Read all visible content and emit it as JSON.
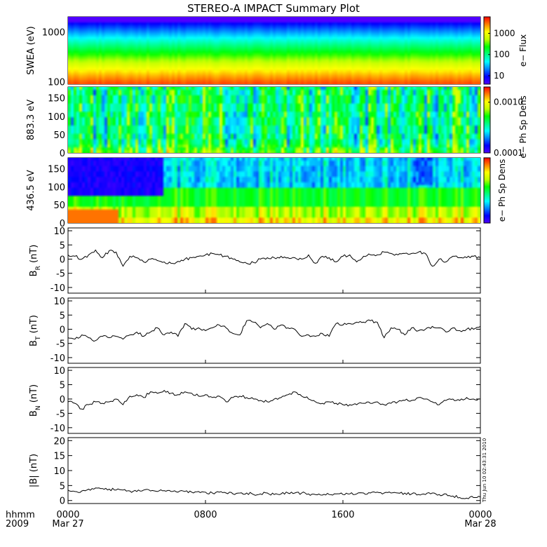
{
  "title": "STEREO-A IMPACT Summary Plot",
  "time_axis": {
    "left_labels": [
      "hhmm",
      "2009"
    ],
    "ticks": [
      {
        "hour": 0,
        "label": "0000",
        "date": "Mar 27"
      },
      {
        "hour": 8,
        "label": "0800",
        "date": ""
      },
      {
        "hour": 16,
        "label": "1600",
        "date": ""
      },
      {
        "hour": 24,
        "label": "0000",
        "date": "Mar 28"
      }
    ]
  },
  "stamp": "Thu Jun 10 02:43:31 2010",
  "colors": {
    "spectrogram_scale": [
      "#5000ff",
      "#0000ff",
      "#0080ff",
      "#00ffff",
      "#00ff80",
      "#00ff00",
      "#c0ff00",
      "#ffff00",
      "#ff8000",
      "#ff0000"
    ],
    "line": "#000000"
  },
  "chart_data": [
    {
      "type": "heatmap",
      "ylabel": "SWEA (eV)",
      "yscale": "log",
      "ylim": [
        90,
        2000
      ],
      "yticks": [
        {
          "v": 100,
          "label": "100"
        },
        {
          "v": 1000,
          "label": "1000"
        }
      ],
      "colorbar": {
        "label": "e− Flux",
        "scale": "log",
        "range": [
          4,
          6000
        ],
        "ticks": [
          {
            "v": 10,
            "label": "10"
          },
          {
            "v": 100,
            "label": "100"
          },
          {
            "v": 1000,
            "label": "1000"
          }
        ]
      },
      "xlim": [
        0,
        24
      ]
    },
    {
      "type": "heatmap",
      "ylabel": "883.3 eV",
      "ylim": [
        0,
        180
      ],
      "yticks": [
        {
          "v": 0,
          "label": "0"
        },
        {
          "v": 50,
          "label": "50"
        },
        {
          "v": 100,
          "label": "100"
        },
        {
          "v": 150,
          "label": "150"
        }
      ],
      "colorbar": {
        "label": "e− Ph Sp Dens",
        "scale": "log",
        "range": [
          0.0001,
          0.002
        ],
        "ticks": [
          {
            "v": 0.0001,
            "label": "0.0001"
          },
          {
            "v": 0.001,
            "label": "0.0010"
          }
        ]
      },
      "xlim": [
        0,
        24
      ]
    },
    {
      "type": "heatmap",
      "ylabel": "436.5 eV",
      "ylim": [
        0,
        180
      ],
      "yticks": [
        {
          "v": 0,
          "label": "0"
        },
        {
          "v": 50,
          "label": "50"
        },
        {
          "v": 100,
          "label": "100"
        },
        {
          "v": 150,
          "label": "150"
        }
      ],
      "colorbar": {
        "label": "e− Ph Sp Dens",
        "scale": "log",
        "ticks": []
      },
      "xlim": [
        0,
        24
      ]
    },
    {
      "type": "line",
      "ylabel": "B",
      "ylabel_sub": "R",
      "ylabel_unit": "(nT)",
      "ylim": [
        -12,
        11
      ],
      "yticks": [
        -10,
        -5,
        0,
        5,
        10
      ],
      "xlim": [
        0,
        24
      ],
      "x": [
        0,
        0.4,
        0.8,
        1.2,
        1.6,
        2.0,
        2.4,
        2.8,
        3.2,
        3.6,
        4.0,
        4.4,
        4.8,
        5.2,
        5.6,
        6.0,
        6.4,
        6.8,
        7.2,
        7.6,
        8.0,
        8.4,
        8.8,
        9.2,
        9.6,
        10.0,
        10.4,
        10.8,
        11.2,
        11.6,
        12.0,
        12.4,
        12.8,
        13.2,
        13.6,
        14.0,
        14.4,
        14.8,
        15.2,
        15.6,
        16.0,
        16.4,
        16.8,
        17.2,
        17.6,
        18.0,
        18.4,
        18.8,
        19.2,
        19.6,
        20.0,
        20.4,
        20.8,
        21.2,
        21.6,
        22.0,
        22.4,
        22.8,
        23.2,
        23.6,
        24.0
      ],
      "y": [
        1.5,
        1.0,
        0.0,
        1.5,
        3.2,
        0.5,
        3.0,
        2.5,
        -2.5,
        1.0,
        0.5,
        -1.0,
        0.0,
        -0.5,
        -1.0,
        -1.5,
        -0.8,
        0.0,
        0.5,
        1.0,
        1.5,
        2.0,
        1.5,
        1.0,
        0.0,
        -1.0,
        -1.5,
        -1.2,
        0.0,
        0.5,
        0.5,
        1.0,
        0.5,
        0.5,
        0.0,
        1.5,
        -1.5,
        1.0,
        0.5,
        -1.0,
        1.0,
        1.5,
        -1.0,
        1.0,
        1.5,
        1.5,
        2.5,
        2.0,
        1.5,
        2.0,
        2.0,
        2.5,
        2.0,
        -2.5,
        0.0,
        -1.0,
        1.0,
        0.5,
        0.5,
        1.0,
        0.5
      ]
    },
    {
      "type": "line",
      "ylabel": "B",
      "ylabel_sub": "T",
      "ylabel_unit": "(nT)",
      "ylim": [
        -12,
        11
      ],
      "yticks": [
        -10,
        -5,
        0,
        5,
        10
      ],
      "xlim": [
        0,
        24
      ],
      "x": [
        0,
        0.4,
        0.8,
        1.2,
        1.6,
        2.0,
        2.4,
        2.8,
        3.2,
        3.6,
        4.0,
        4.4,
        4.8,
        5.2,
        5.6,
        6.0,
        6.4,
        6.8,
        7.2,
        7.6,
        8.0,
        8.4,
        8.8,
        9.2,
        9.6,
        10.0,
        10.4,
        10.8,
        11.2,
        11.6,
        12.0,
        12.4,
        12.8,
        13.2,
        13.6,
        14.0,
        14.4,
        14.8,
        15.2,
        15.6,
        16.0,
        16.4,
        16.8,
        17.2,
        17.6,
        18.0,
        18.4,
        18.8,
        19.2,
        19.6,
        20.0,
        20.4,
        20.8,
        21.2,
        21.6,
        22.0,
        22.4,
        22.8,
        23.2,
        23.6,
        24.0
      ],
      "y": [
        -3.0,
        -3.5,
        -2.0,
        -3.0,
        -4.0,
        -2.5,
        -3.0,
        -2.5,
        -3.5,
        -2.0,
        -1.0,
        -2.5,
        -1.0,
        0.5,
        -2.0,
        -1.0,
        -2.5,
        2.0,
        0.0,
        0.5,
        -0.5,
        0.5,
        1.5,
        0.5,
        -1.5,
        -2.0,
        3.0,
        2.5,
        0.5,
        2.0,
        0.0,
        1.5,
        0.5,
        0.0,
        -2.5,
        -2.0,
        -2.5,
        -1.5,
        -2.5,
        2.0,
        1.5,
        2.0,
        2.5,
        2.5,
        3.0,
        2.5,
        -3.0,
        0.5,
        0.0,
        -2.0,
        0.5,
        -0.5,
        0.0,
        1.0,
        0.5,
        -1.0,
        0.5,
        -0.5,
        0.0,
        0.0,
        1.0
      ]
    },
    {
      "type": "line",
      "ylabel": "B",
      "ylabel_sub": "N",
      "ylabel_unit": "(nT)",
      "ylim": [
        -12,
        11
      ],
      "yticks": [
        -10,
        -5,
        0,
        5,
        10
      ],
      "xlim": [
        0,
        24
      ],
      "x": [
        0,
        0.4,
        0.8,
        1.2,
        1.6,
        2.0,
        2.4,
        2.8,
        3.2,
        3.6,
        4.0,
        4.4,
        4.8,
        5.2,
        5.6,
        6.0,
        6.4,
        6.8,
        7.2,
        7.6,
        8.0,
        8.4,
        8.8,
        9.2,
        9.6,
        10.0,
        10.4,
        10.8,
        11.2,
        11.6,
        12.0,
        12.4,
        12.8,
        13.2,
        13.6,
        14.0,
        14.4,
        14.8,
        15.2,
        15.6,
        16.0,
        16.4,
        16.8,
        17.2,
        17.6,
        18.0,
        18.4,
        18.8,
        19.2,
        19.6,
        20.0,
        20.4,
        20.8,
        21.2,
        21.6,
        22.0,
        22.4,
        22.8,
        23.2,
        23.6,
        24.0
      ],
      "y": [
        -1.0,
        -1.5,
        -3.5,
        -2.0,
        -1.0,
        -1.5,
        -1.0,
        0.0,
        -2.0,
        1.0,
        1.5,
        0.5,
        2.5,
        2.0,
        3.0,
        2.0,
        1.5,
        2.5,
        2.0,
        1.0,
        1.5,
        0.5,
        1.0,
        -1.0,
        0.5,
        1.0,
        0.5,
        0.0,
        -0.5,
        -1.0,
        0.0,
        0.5,
        1.5,
        2.5,
        1.0,
        0.0,
        -1.0,
        -1.5,
        -1.0,
        -1.5,
        -2.0,
        -2.0,
        -2.0,
        -1.5,
        -1.5,
        -1.0,
        -2.0,
        -1.5,
        -1.0,
        -0.5,
        -0.5,
        0.5,
        0.0,
        -1.0,
        -2.0,
        -0.5,
        0.0,
        -0.5,
        0.5,
        0.0,
        0.0
      ]
    },
    {
      "type": "line",
      "ylabel": "|B| (nT)",
      "ylim": [
        -1,
        21
      ],
      "yticks": [
        0,
        5,
        10,
        15,
        20
      ],
      "xlim": [
        0,
        24
      ],
      "x": [
        0,
        0.4,
        0.8,
        1.2,
        1.6,
        2.0,
        2.4,
        2.8,
        3.2,
        3.6,
        4.0,
        4.4,
        4.8,
        5.2,
        5.6,
        6.0,
        6.4,
        6.8,
        7.2,
        7.6,
        8.0,
        8.4,
        8.8,
        9.2,
        9.6,
        10.0,
        10.4,
        10.8,
        11.2,
        11.6,
        12.0,
        12.4,
        12.8,
        13.2,
        13.6,
        14.0,
        14.4,
        14.8,
        15.2,
        15.6,
        16.0,
        16.4,
        16.8,
        17.2,
        17.6,
        18.0,
        18.4,
        18.8,
        19.2,
        19.6,
        20.0,
        20.4,
        20.8,
        21.2,
        21.6,
        22.0,
        22.4,
        22.8,
        23.2,
        23.6,
        24.0
      ],
      "y": [
        3.5,
        3.0,
        3.2,
        3.8,
        4.2,
        4.0,
        3.8,
        3.5,
        3.5,
        3.2,
        3.0,
        3.5,
        3.2,
        3.0,
        3.3,
        3.0,
        2.8,
        3.0,
        2.8,
        3.0,
        2.8,
        2.5,
        2.8,
        2.5,
        2.2,
        2.5,
        2.5,
        2.0,
        2.2,
        2.5,
        2.0,
        2.2,
        2.5,
        2.5,
        2.5,
        2.2,
        2.0,
        1.8,
        2.0,
        2.2,
        2.0,
        2.2,
        2.2,
        2.5,
        2.5,
        2.8,
        2.5,
        2.5,
        2.5,
        2.5,
        2.2,
        2.0,
        2.0,
        2.5,
        2.0,
        2.2,
        1.5,
        1.0,
        0.8,
        1.0,
        1.2
      ]
    }
  ]
}
